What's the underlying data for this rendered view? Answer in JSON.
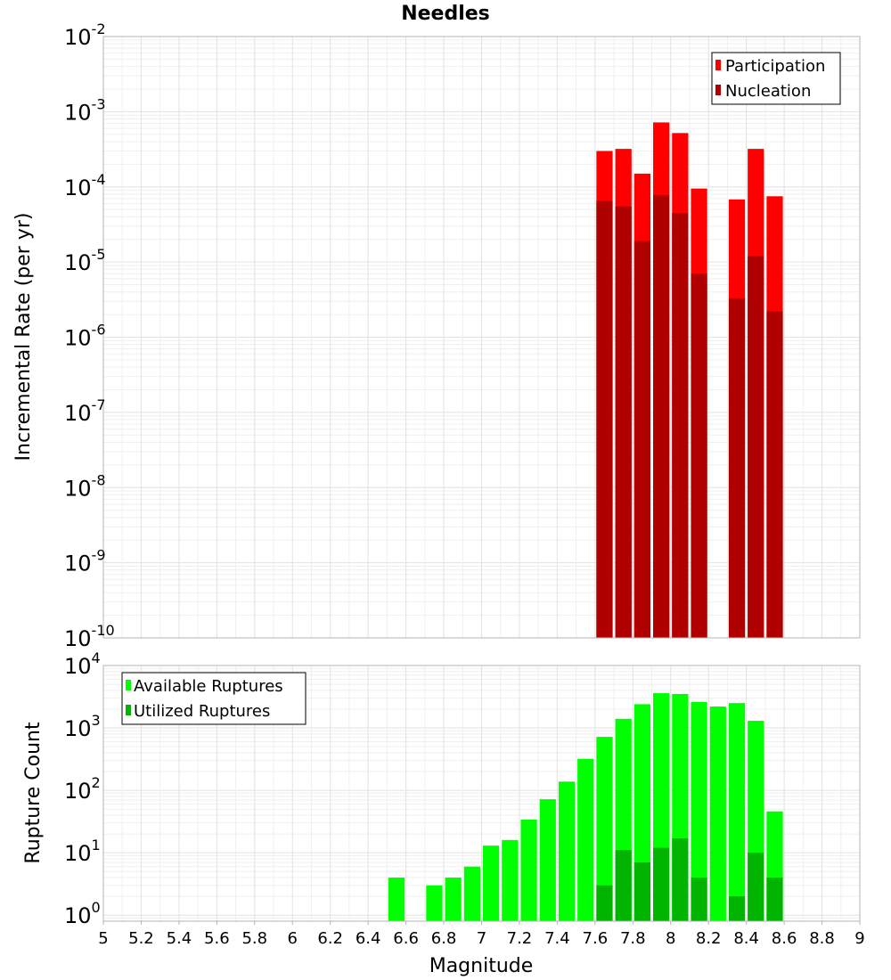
{
  "chart_data": [
    {
      "type": "bar",
      "title": "Needles",
      "xlabel": "",
      "ylabel": "Incremental Rate (per yr)",
      "yscale": "log",
      "ylim": [
        1e-10,
        0.01
      ],
      "xlim": [
        5,
        9
      ],
      "y_ticks": [
        {
          "base": "10",
          "exp": "-2"
        },
        {
          "base": "10",
          "exp": "-3"
        },
        {
          "base": "10",
          "exp": "-4"
        },
        {
          "base": "10",
          "exp": "-5"
        },
        {
          "base": "10",
          "exp": "-6"
        },
        {
          "base": "10",
          "exp": "-7"
        },
        {
          "base": "10",
          "exp": "-8"
        },
        {
          "base": "10",
          "exp": "-9"
        },
        {
          "base": "10",
          "exp": "-10"
        }
      ],
      "legend_position": "top-right",
      "bar_width": 0.1,
      "series": [
        {
          "name": "Participation",
          "color": "#ff0000",
          "x": [
            7.65,
            7.75,
            7.85,
            7.95,
            8.05,
            8.15,
            8.35,
            8.45,
            8.55
          ],
          "values": [
            0.0003,
            0.00032,
            0.00015,
            0.00072,
            0.00052,
            9.5e-05,
            6.8e-05,
            0.00032,
            7.5e-05
          ]
        },
        {
          "name": "Nucleation",
          "color": "#b00000",
          "x": [
            7.65,
            7.75,
            7.85,
            7.95,
            8.05,
            8.15,
            8.35,
            8.45,
            8.55
          ],
          "values": [
            6.5e-05,
            5.5e-05,
            1.9e-05,
            7.8e-05,
            4.5e-05,
            7e-06,
            3.3e-06,
            1.2e-05,
            2.2e-06
          ]
        }
      ]
    },
    {
      "type": "bar",
      "title": "",
      "xlabel": "Magnitude",
      "ylabel": "Rupture Count",
      "yscale": "log",
      "ylim": [
        0.8,
        10000
      ],
      "xlim": [
        5,
        9
      ],
      "y_ticks": [
        {
          "base": "10",
          "exp": "4"
        },
        {
          "base": "10",
          "exp": "3"
        },
        {
          "base": "10",
          "exp": "2"
        },
        {
          "base": "10",
          "exp": "1"
        },
        {
          "base": "10",
          "exp": "0"
        }
      ],
      "x_ticks": [
        "5",
        "5.2",
        "5.4",
        "5.6",
        "5.8",
        "6",
        "6.2",
        "6.4",
        "6.6",
        "6.8",
        "7",
        "7.2",
        "7.4",
        "7.6",
        "7.8",
        "8",
        "8.2",
        "8.4",
        "8.6",
        "8.8",
        "9"
      ],
      "legend_position": "top-left",
      "bar_width": 0.1,
      "series": [
        {
          "name": "Available Ruptures",
          "color": "#00ff00",
          "x": [
            6.55,
            6.75,
            6.85,
            6.95,
            7.05,
            7.15,
            7.25,
            7.35,
            7.45,
            7.55,
            7.65,
            7.75,
            7.85,
            7.95,
            8.05,
            8.15,
            8.25,
            8.35,
            8.45,
            8.55
          ],
          "values": [
            4,
            3,
            4,
            6,
            13,
            16,
            34,
            72,
            138,
            320,
            720,
            1400,
            2400,
            3600,
            3500,
            2600,
            2200,
            2500,
            1300,
            46
          ]
        },
        {
          "name": "Utilized Ruptures",
          "color": "#00b400",
          "x": [
            7.65,
            7.75,
            7.85,
            7.95,
            8.05,
            8.15,
            8.35,
            8.45,
            8.55
          ],
          "values": [
            3,
            11,
            7,
            12,
            17,
            4,
            2,
            10,
            4
          ]
        }
      ]
    }
  ]
}
